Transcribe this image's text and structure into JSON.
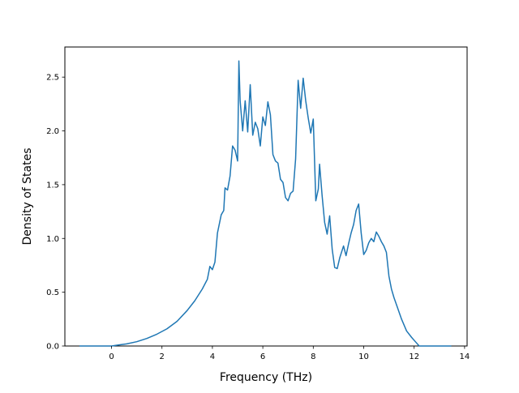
{
  "chart_data": {
    "type": "line",
    "title": "",
    "xlabel": "Frequency (THz)",
    "ylabel": "Density of States",
    "xlim": [
      -1.85,
      14.1
    ],
    "ylim": [
      0,
      2.78
    ],
    "xticks": [
      0,
      2,
      4,
      6,
      8,
      10,
      12,
      14
    ],
    "yticks": [
      0.0,
      0.5,
      1.0,
      1.5,
      2.0,
      2.5
    ],
    "xtick_labels": [
      "0",
      "2",
      "4",
      "6",
      "8",
      "10",
      "12",
      "14"
    ],
    "ytick_labels": [
      "0.0",
      "0.5",
      "1.0",
      "1.5",
      "2.0",
      "2.5"
    ],
    "grid": false,
    "legend": "none",
    "line_color": "#1f77b4",
    "series": [
      {
        "x": [
          -1.25,
          -0.5,
          0.0,
          0.3,
          0.6,
          1.0,
          1.4,
          1.8,
          2.2,
          2.6,
          3.0,
          3.3,
          3.6,
          3.8,
          3.9,
          4.0,
          4.1,
          4.2,
          4.35,
          4.45,
          4.5,
          4.6,
          4.7,
          4.8,
          4.9,
          5.0,
          5.05,
          5.1,
          5.2,
          5.3,
          5.4,
          5.5,
          5.6,
          5.7,
          5.8,
          5.9,
          6.0,
          6.1,
          6.2,
          6.3,
          6.4,
          6.5,
          6.6,
          6.7,
          6.8,
          6.9,
          7.0,
          7.1,
          7.2,
          7.3,
          7.4,
          7.5,
          7.6,
          7.7,
          7.8,
          7.9,
          8.0,
          8.1,
          8.2,
          8.25,
          8.35,
          8.45,
          8.55,
          8.65,
          8.75,
          8.85,
          8.95,
          9.05,
          9.2,
          9.3,
          9.4,
          9.5,
          9.6,
          9.7,
          9.8,
          9.9,
          10.0,
          10.1,
          10.2,
          10.3,
          10.4,
          10.5,
          10.6,
          10.7,
          10.8,
          10.9,
          11.0,
          11.1,
          11.2,
          11.35,
          11.5,
          11.7,
          11.9,
          12.05,
          12.2,
          12.4,
          13.45
        ],
        "y": [
          0.0,
          0.0,
          0.0,
          0.01,
          0.02,
          0.04,
          0.07,
          0.11,
          0.16,
          0.23,
          0.33,
          0.42,
          0.53,
          0.62,
          0.74,
          0.71,
          0.78,
          1.05,
          1.22,
          1.26,
          1.47,
          1.45,
          1.58,
          1.86,
          1.82,
          1.72,
          2.65,
          2.28,
          2.0,
          2.28,
          1.99,
          2.43,
          1.96,
          2.08,
          2.02,
          1.86,
          2.13,
          2.05,
          2.27,
          2.15,
          1.78,
          1.72,
          1.7,
          1.55,
          1.52,
          1.38,
          1.35,
          1.42,
          1.44,
          1.74,
          2.47,
          2.21,
          2.49,
          2.28,
          2.12,
          1.98,
          2.11,
          1.35,
          1.46,
          1.69,
          1.4,
          1.15,
          1.04,
          1.21,
          0.9,
          0.73,
          0.72,
          0.82,
          0.93,
          0.84,
          0.95,
          1.05,
          1.13,
          1.26,
          1.32,
          1.05,
          0.85,
          0.89,
          0.96,
          1.0,
          0.97,
          1.06,
          1.02,
          0.97,
          0.93,
          0.87,
          0.65,
          0.53,
          0.45,
          0.35,
          0.25,
          0.14,
          0.08,
          0.04,
          0.0,
          0.0,
          0.0
        ]
      }
    ]
  }
}
